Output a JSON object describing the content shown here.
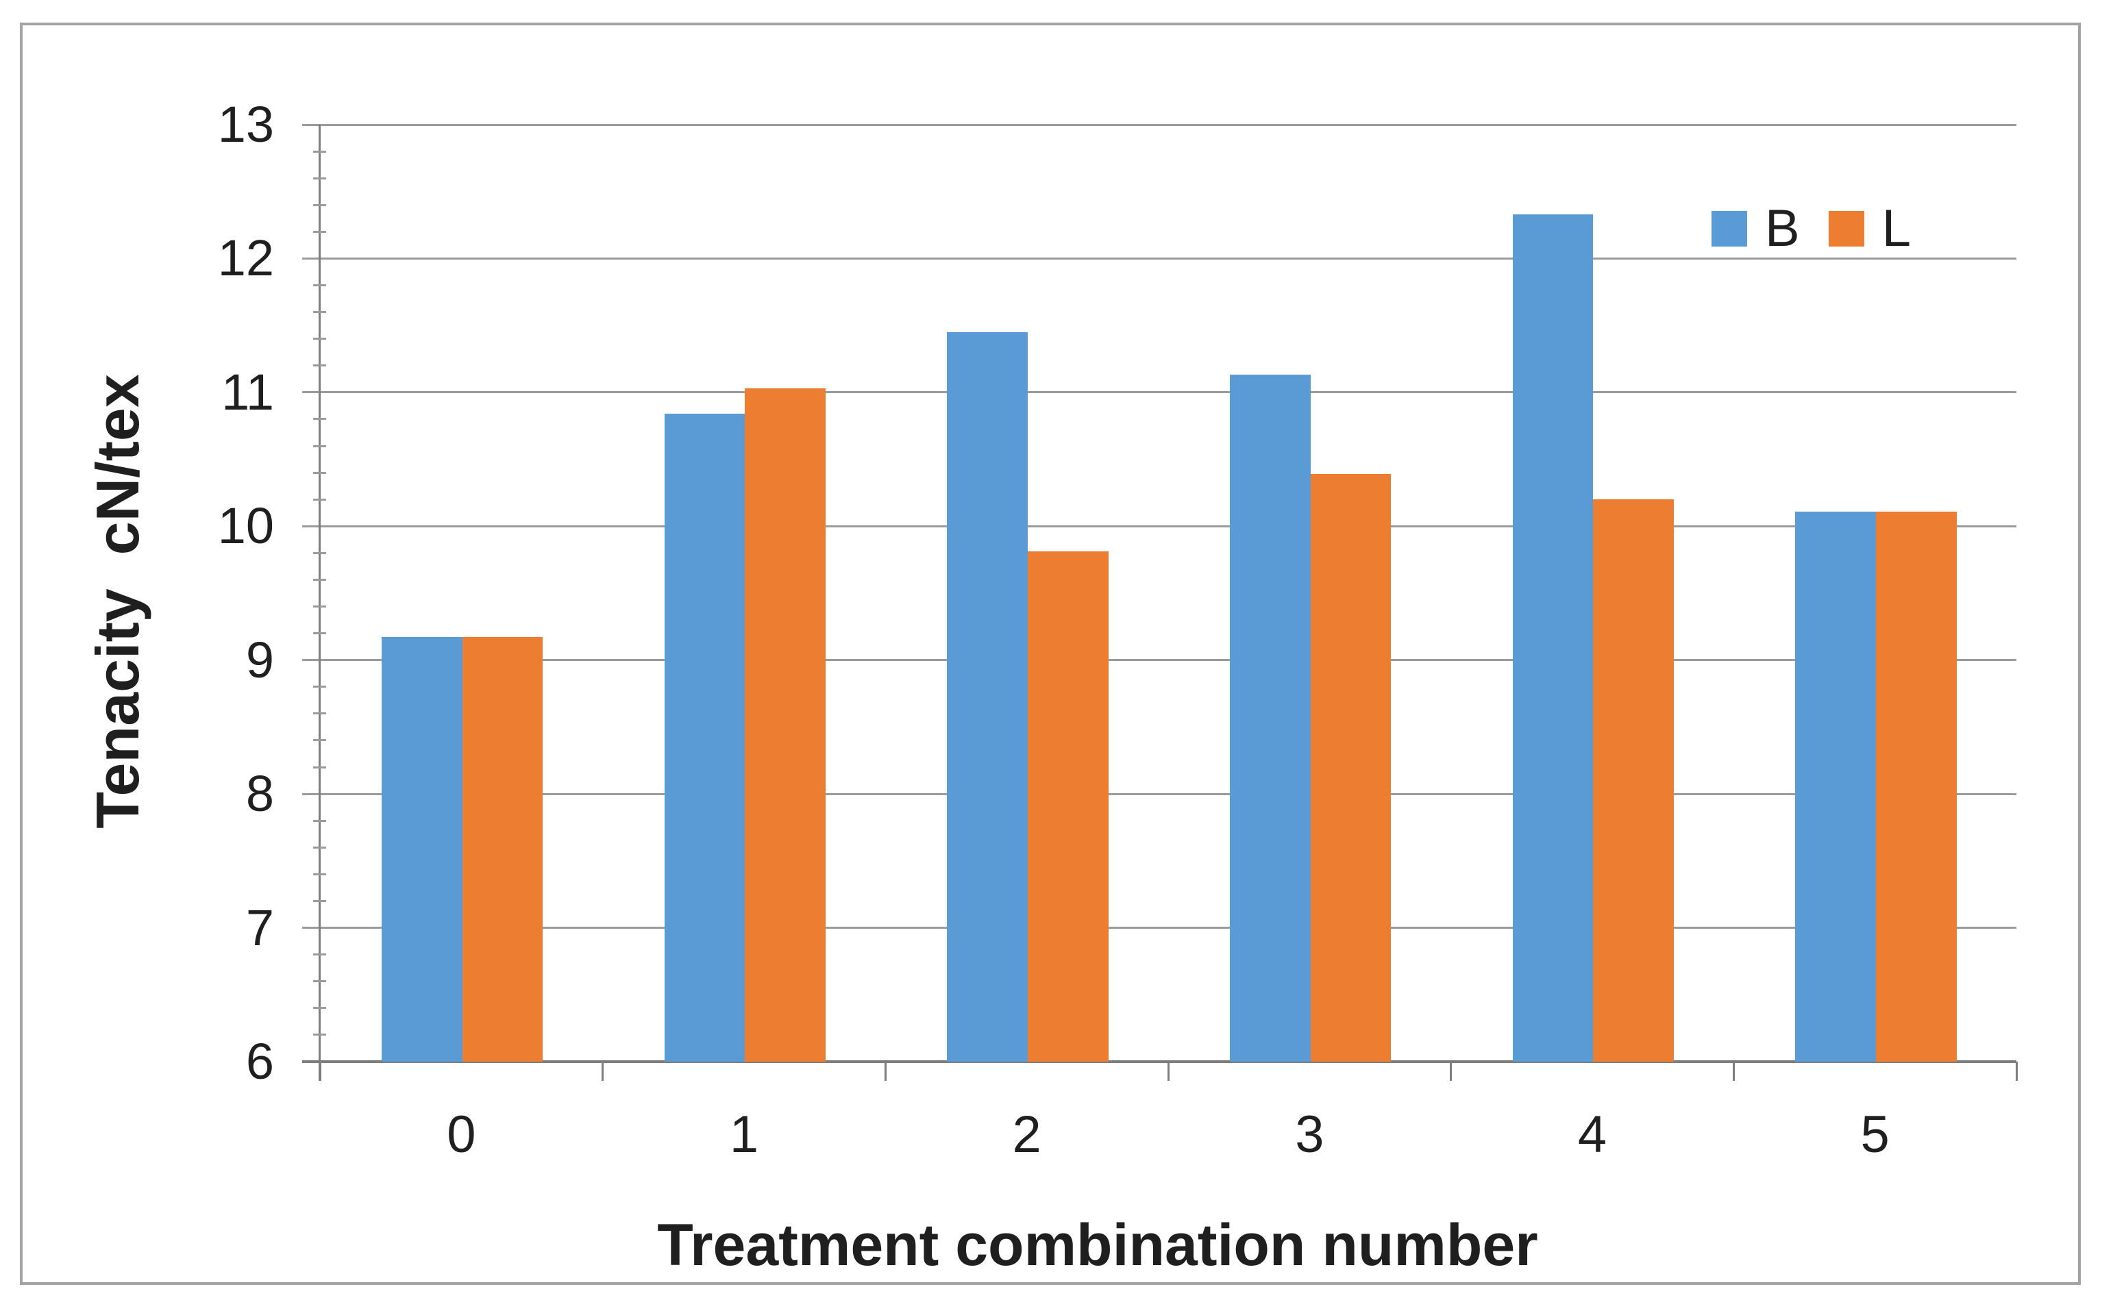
{
  "chart_data": {
    "type": "bar",
    "title": "",
    "xlabel": "Treatment combination number",
    "ylabel": "Tenacity  cN/tex",
    "categories": [
      "0",
      "1",
      "2",
      "3",
      "4",
      "5"
    ],
    "series": [
      {
        "name": "B",
        "color": "#5B9BD5",
        "values": [
          9.17,
          10.84,
          11.45,
          11.13,
          12.33,
          10.11
        ]
      },
      {
        "name": "L",
        "color": "#ED7D31",
        "values": [
          9.17,
          11.03,
          9.81,
          10.39,
          10.2,
          10.11
        ]
      }
    ],
    "ylim": [
      6,
      13
    ],
    "yticks": [
      6,
      7,
      8,
      9,
      10,
      11,
      12,
      13
    ],
    "minor_tick_step": 0.2,
    "grid": true,
    "legend_position": "top-right",
    "gridline_color": "#9b9b9b",
    "axis_line_color": "#7e7e7e",
    "text_color": "#1f1f1f",
    "frame_color": "#a3a3a3",
    "background_color": "#ffffff"
  }
}
